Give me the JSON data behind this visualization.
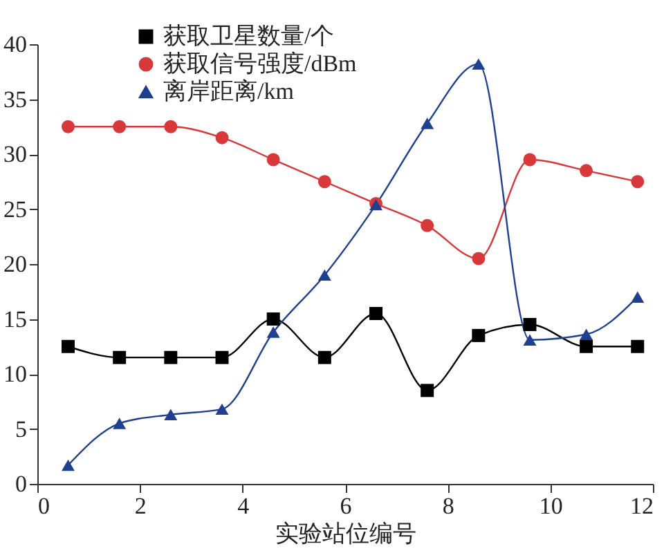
{
  "chart_data": {
    "type": "line",
    "xlabel": "实验站位编号",
    "x": [
      0.6,
      1.6,
      2.6,
      3.6,
      4.6,
      5.6,
      6.6,
      7.6,
      8.6,
      9.6,
      10.7,
      11.7
    ],
    "series": [
      {
        "name": "获取卫星数量/个",
        "color": "#000000",
        "marker": "square",
        "values": [
          12.5,
          11.5,
          11.5,
          11.5,
          15,
          11.5,
          15.5,
          8.5,
          13.5,
          14.5,
          12.5,
          12.5
        ]
      },
      {
        "name": "获取信号强度/dBm",
        "color": "#d9383a",
        "marker": "circle",
        "values": [
          32.5,
          32.5,
          32.5,
          31.5,
          29.5,
          27.5,
          25.5,
          23.5,
          20.5,
          29.5,
          28.5,
          27.5
        ]
      },
      {
        "name": "离岸距离/km",
        "color": "#1f3f8f",
        "marker": "triangle",
        "values": [
          1.7,
          5.5,
          6.3,
          6.8,
          13.8,
          19,
          25.4,
          32.8,
          38.2,
          13.1,
          13.6,
          17.0
        ]
      }
    ],
    "xlim": [
      0,
      12
    ],
    "xticks": [
      0,
      2,
      4,
      6,
      8,
      10,
      12
    ],
    "ylim": [
      0,
      40
    ],
    "yticks": [
      0,
      5,
      10,
      15,
      20,
      25,
      30,
      35,
      40
    ],
    "legend": "top",
    "grid": false
  }
}
